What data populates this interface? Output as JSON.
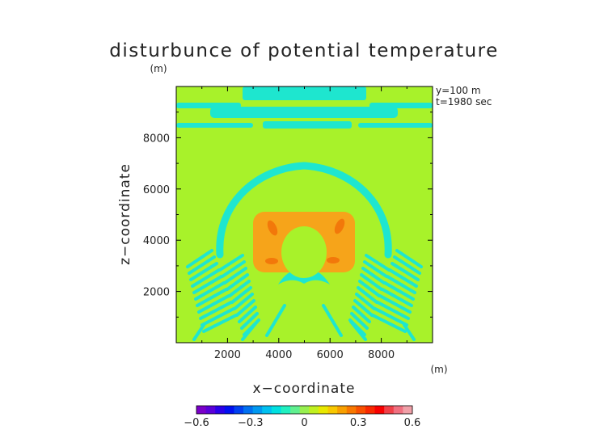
{
  "chart_data": {
    "type": "heatmap",
    "title": "disturbunce of potential temperature",
    "xlabel": "x−coordinate",
    "ylabel": "z−coordinate",
    "x_unit": "(m)",
    "y_unit": "(m)",
    "annotations": [
      "y=100 m",
      "t=1980 sec"
    ],
    "xlim": [
      0,
      10000
    ],
    "ylim": [
      0,
      10000
    ],
    "x_ticks": [
      2000,
      4000,
      6000,
      8000
    ],
    "y_ticks": [
      2000,
      4000,
      6000,
      8000
    ],
    "colorbar": {
      "range": [
        -0.6,
        0.6
      ],
      "ticks": [
        -0.6,
        -0.3,
        0,
        0.3,
        0.6
      ],
      "tick_labels": [
        "−0.6",
        "−0.3",
        "0",
        "0.3",
        "0.6"
      ],
      "colors": [
        "#7a00c8",
        "#5a00d8",
        "#2a00e8",
        "#0010f0",
        "#0040f0",
        "#0070f0",
        "#0098f0",
        "#00c0f0",
        "#00e0e0",
        "#20f0c0",
        "#60f090",
        "#98f050",
        "#c0f020",
        "#e8e800",
        "#f8c800",
        "#f8a000",
        "#f87800",
        "#f85000",
        "#f82800",
        "#f80000",
        "#f04048",
        "#f07080",
        "#f0a0a8"
      ]
    },
    "level_colors": {
      "cyan": "#1ee6cf",
      "green": "#a8f22a",
      "orange": "#f6a41a",
      "dark_orange": "#f2780a"
    }
  }
}
